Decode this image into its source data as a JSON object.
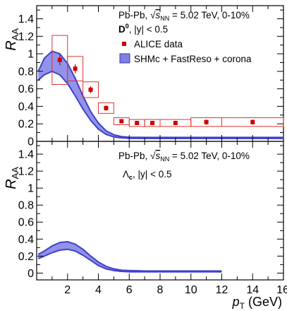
{
  "chart_data": [
    {
      "type": "scatter",
      "panel": "top",
      "ylabel_main": "R",
      "ylabel_sub": "AA",
      "ylim": [
        0,
        1.55
      ],
      "xlim": [
        0,
        16
      ],
      "yticks": [
        "0",
        "0.2",
        "0.4",
        "0.6",
        "0.8",
        "1",
        "1.2",
        "1.4"
      ],
      "yvals": [
        0,
        0.2,
        0.4,
        0.6,
        0.8,
        1.0,
        1.2,
        1.4
      ],
      "grid": false,
      "annotation_line1_a": "Pb-Pb, ",
      "annotation_sqrt_s": "s",
      "annotation_sqrt_sub": "NN",
      "annotation_line1_b": " = 5.02 TeV, 0-10%",
      "particle": "D",
      "particle_sup": "0",
      "rapidity": ", |y| < 0.5",
      "legend_data": "ALICE data",
      "legend_model": "SHMc + FastReso + corona",
      "data_color": "#cc0000",
      "band_color": "#5b5bd6",
      "series": [
        {
          "name": "ALICE data",
          "x": [
            1.5,
            2.5,
            3.5,
            4.5,
            5.5,
            6.5,
            7.5,
            9.0,
            11.0,
            14.0
          ],
          "y": [
            0.93,
            0.83,
            0.59,
            0.38,
            0.23,
            0.21,
            0.21,
            0.21,
            0.22,
            0.22
          ],
          "stat_err": [
            0.06,
            0.05,
            0.04,
            0.03,
            0.02,
            0.02,
            0.02,
            0.02,
            0.03,
            0.03
          ],
          "syst_err": [
            0.28,
            0.14,
            0.09,
            0.06,
            0.04,
            0.04,
            0.04,
            0.04,
            0.05,
            0.05
          ],
          "x_halfwidth": [
            0.5,
            0.5,
            0.5,
            0.5,
            0.5,
            0.5,
            0.5,
            1.0,
            1.0,
            2.0
          ]
        },
        {
          "name": "SHMc + FastReso + corona",
          "type": "band",
          "x": [
            0.1,
            0.5,
            1.0,
            1.5,
            2.0,
            2.5,
            3.0,
            3.5,
            4.0,
            4.5,
            5.0,
            5.5,
            6.0,
            7.0,
            8.0,
            9.0,
            10.0,
            11.0,
            12.0,
            13.0,
            14.0,
            15.0,
            16.0
          ],
          "upper": [
            0.8,
            0.95,
            1.03,
            1.0,
            0.89,
            0.72,
            0.52,
            0.34,
            0.21,
            0.12,
            0.075,
            0.055,
            0.048,
            0.045,
            0.045,
            0.045,
            0.045,
            0.045,
            0.045,
            0.045,
            0.045,
            0.045,
            0.045
          ],
          "lower": [
            0.7,
            0.76,
            0.8,
            0.76,
            0.66,
            0.52,
            0.37,
            0.24,
            0.14,
            0.08,
            0.05,
            0.04,
            0.035,
            0.033,
            0.033,
            0.033,
            0.033,
            0.033,
            0.033,
            0.033,
            0.033,
            0.033,
            0.033
          ]
        }
      ]
    },
    {
      "type": "area",
      "panel": "bottom",
      "ylabel_main": "R",
      "ylabel_sub": "AA",
      "ylim": [
        -0.08,
        1.55
      ],
      "xlim": [
        0,
        16
      ],
      "yticks": [
        "0",
        "0.2",
        "0.4",
        "0.6",
        "0.8",
        "1",
        "1.2",
        "1.4"
      ],
      "yvals": [
        0,
        0.2,
        0.4,
        0.6,
        0.8,
        1.0,
        1.2,
        1.4
      ],
      "xticks": [
        "2",
        "4",
        "6",
        "8",
        "10",
        "12",
        "14",
        "16"
      ],
      "xvals": [
        2,
        4,
        6,
        8,
        10,
        12,
        14,
        16
      ],
      "xlabel_main": "p",
      "xlabel_sub": "T",
      "xlabel_unit": " (GeV)",
      "grid": false,
      "annotation_line1_a": "Pb-Pb, ",
      "annotation_sqrt_s": "s",
      "annotation_sqrt_sub": "NN",
      "annotation_line1_b": " = 5.02 TeV, 0-10%",
      "particle": "Λ",
      "particle_sub": "c",
      "rapidity": ", |y| < 0.5",
      "series": [
        {
          "name": "SHMc + FastReso + corona",
          "type": "band",
          "x": [
            0.1,
            0.5,
            1.0,
            1.5,
            2.0,
            2.5,
            3.0,
            3.5,
            4.0,
            4.5,
            5.0,
            5.5,
            6.0,
            7.0,
            8.0,
            9.0,
            10.0,
            11.0,
            12.0
          ],
          "upper": [
            0.22,
            0.26,
            0.32,
            0.36,
            0.37,
            0.34,
            0.28,
            0.2,
            0.13,
            0.08,
            0.05,
            0.035,
            0.03,
            0.025,
            0.025,
            0.025,
            0.025,
            0.025,
            0.025
          ],
          "lower": [
            0.17,
            0.2,
            0.24,
            0.27,
            0.28,
            0.26,
            0.21,
            0.15,
            0.09,
            0.05,
            0.03,
            0.02,
            0.015,
            0.015,
            0.015,
            0.015,
            0.015,
            0.015,
            0.015
          ]
        }
      ]
    }
  ]
}
